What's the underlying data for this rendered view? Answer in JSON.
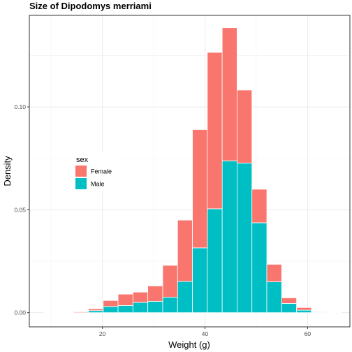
{
  "chart_data": {
    "type": "bar",
    "title": "Size of Dipodomys merriami",
    "xlabel": "Weight (g)",
    "ylabel": "Density",
    "xlim": [
      5.75,
      68.25
    ],
    "ylim": [
      -0.0069,
      0.1445
    ],
    "x_ticks": [
      20,
      40,
      60
    ],
    "y_ticks": [
      0.0,
      0.05,
      0.1
    ],
    "y_tick_labels": [
      "0.00",
      "0.05",
      "0.10"
    ],
    "grid": true,
    "legend": {
      "title": "sex",
      "placement": "left-middle",
      "entries": [
        {
          "label": "Female",
          "color": "#F8766D"
        },
        {
          "label": "Male",
          "color": "#00BFC4"
        }
      ]
    },
    "stacking": "stacked",
    "bin_width": 2.9,
    "bin_centers": [
      10.0,
      12.9,
      15.8,
      18.7,
      21.6,
      24.5,
      27.4,
      30.3,
      33.2,
      36.1,
      39.0,
      41.9,
      44.8,
      47.7,
      50.6,
      53.5,
      56.4,
      59.3,
      62.2,
      65.1
    ],
    "series": [
      {
        "name": "Male",
        "color": "#00BFC4",
        "values": [
          0.0,
          0.0,
          0.0,
          0.001,
          0.003,
          0.0035,
          0.005,
          0.0055,
          0.0075,
          0.0152,
          0.0315,
          0.0505,
          0.0738,
          0.0727,
          0.0437,
          0.015,
          0.0045,
          0.0012,
          0.0003,
          0.0
        ]
      },
      {
        "name": "Female",
        "color": "#F8766D",
        "values": [
          0.0001,
          0.0002,
          0.0004,
          0.0009,
          0.0029,
          0.0055,
          0.005,
          0.0075,
          0.0155,
          0.0298,
          0.0575,
          0.076,
          0.0647,
          0.0355,
          0.0163,
          0.0085,
          0.0027,
          0.0013,
          0.0003,
          0.0001
        ]
      }
    ]
  }
}
